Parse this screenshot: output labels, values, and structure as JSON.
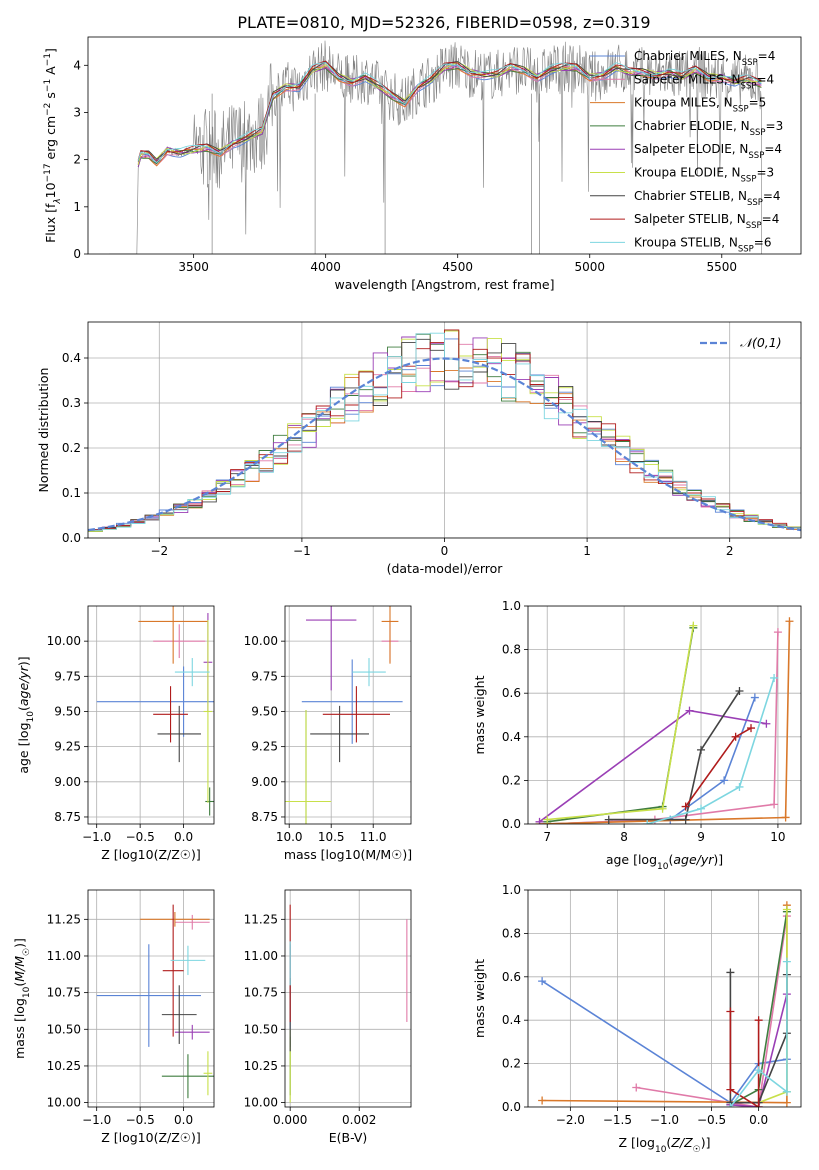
{
  "figure": {
    "title": "PLATE=0810, MJD=52326, FIBERID=0598, z=0.319"
  },
  "models": [
    {
      "name": "Chabrier MILES, N_SSP=4",
      "base": "Chabrier MILES, N",
      "sub": "SSP",
      "suffix": "=4",
      "color": "#5b84d6"
    },
    {
      "name": "Salpeter MILES, N_SSP=4",
      "base": "Salpeter MILES, N",
      "sub": "SSP",
      "suffix": "=4",
      "color": "#e07aa8"
    },
    {
      "name": "Kroupa MILES, N_SSP=5",
      "base": "Kroupa MILES, N",
      "sub": "SSP",
      "suffix": "=5",
      "color": "#d9782a"
    },
    {
      "name": "Chabrier ELODIE, N_SSP=3",
      "base": "Chabrier ELODIE, N",
      "sub": "SSP",
      "suffix": "=3",
      "color": "#3f7d3f"
    },
    {
      "name": "Salpeter ELODIE, N_SSP=4",
      "base": "Salpeter ELODIE, N",
      "sub": "SSP",
      "suffix": "=4",
      "color": "#9a3fb5"
    },
    {
      "name": "Kroupa ELODIE, N_SSP=3",
      "base": "Kroupa ELODIE, N",
      "sub": "SSP",
      "suffix": "=3",
      "color": "#c8e04a"
    },
    {
      "name": "Chabrier STELIB, N_SSP=4",
      "base": "Chabrier STELIB, N",
      "sub": "SSP",
      "suffix": "=4",
      "color": "#444444"
    },
    {
      "name": "Salpeter STELIB, N_SSP=4",
      "base": "Salpeter STELIB, N",
      "sub": "SSP",
      "suffix": "=4",
      "color": "#b01c1c"
    },
    {
      "name": "Kroupa STELIB, N_SSP=6",
      "base": "Kroupa STELIB, N",
      "sub": "SSP",
      "suffix": "=6",
      "color": "#7dd6e0"
    }
  ],
  "chart_data": [
    {
      "id": "spectrum",
      "type": "line",
      "xlabel": "wavelength [Angstrom, rest frame]",
      "ylabel": "Flux [f_λ 10^-17 erg cm^-2 s^-1 A^-1]",
      "ylabel_parts": {
        "a": "Flux [f",
        "b": "λ",
        "c": "10",
        "d": "−17",
        "e": " erg cm",
        "f": "−2",
        "g": " s",
        "h": "−1",
        "i": " A",
        "j": "−1",
        "k": "]"
      },
      "xlim": [
        3100,
        5800
      ],
      "ylim": [
        0,
        4.6
      ],
      "xticks": [
        3500,
        4000,
        4500,
        5000,
        5500
      ],
      "yticks": [
        0,
        1,
        2,
        3,
        4
      ],
      "data_color": "#808080",
      "continuum": {
        "x": [
          3290,
          3300,
          3330,
          3360,
          3400,
          3450,
          3500,
          3550,
          3600,
          3650,
          3700,
          3760,
          3800,
          3850,
          3900,
          3950,
          4000,
          4050,
          4100,
          4150,
          4200,
          4250,
          4300,
          4350,
          4400,
          4450,
          4500,
          4550,
          4600,
          4650,
          4700,
          4750,
          4800,
          4850,
          4900,
          4950,
          5000,
          5050,
          5100,
          5150,
          5200,
          5250,
          5300,
          5350,
          5400,
          5450,
          5500,
          5550,
          5600,
          5650
        ],
        "y": [
          1.9,
          2.1,
          2.1,
          1.95,
          2.2,
          2.15,
          2.2,
          2.25,
          2.15,
          2.35,
          2.45,
          2.6,
          3.35,
          3.55,
          3.55,
          3.9,
          4.0,
          3.75,
          3.65,
          3.75,
          3.55,
          3.35,
          3.2,
          3.55,
          3.7,
          3.95,
          4.0,
          3.85,
          3.8,
          3.8,
          3.95,
          3.9,
          3.75,
          3.9,
          3.95,
          3.95,
          3.75,
          3.8,
          3.95,
          3.85,
          3.85,
          3.8,
          3.85,
          3.75,
          3.9,
          3.75,
          3.75,
          3.65,
          3.7,
          3.6
        ]
      }
    },
    {
      "id": "residuals",
      "type": "bar",
      "xlabel": "(data-model)/error",
      "ylabel": "Normed distribution",
      "xlim": [
        -2.5,
        2.5
      ],
      "ylim": [
        0,
        0.48
      ],
      "xticks": [
        -2,
        -1,
        0,
        1,
        2
      ],
      "yticks": [
        0,
        0.1,
        0.2,
        0.3,
        0.4
      ],
      "legend": "𝒩(0,1)",
      "gauss_color": "#5b84d6"
    },
    {
      "id": "age_vs_Z",
      "type": "scatter",
      "xlabel": "Z [log10(Z/Z☉)]",
      "ylabel": "age [log10(age/yr)]",
      "xlim": [
        -1.1,
        0.35
      ],
      "ylim": [
        8.7,
        10.25
      ],
      "xticks": [
        -1.0,
        -0.5,
        0.0
      ],
      "yticks": [
        8.75,
        9.0,
        9.25,
        9.5,
        9.75,
        10.0
      ],
      "points": [
        {
          "model": 0,
          "x": 0.0,
          "xe": 1.0,
          "y": 9.57,
          "ye": 0.25
        },
        {
          "model": 1,
          "x": -0.05,
          "xe": 0.3,
          "y": 10.0,
          "ye": 0.12
        },
        {
          "model": 2,
          "x": -0.12,
          "xe": 0.4,
          "y": 10.14,
          "ye": 0.3
        },
        {
          "model": 3,
          "x": 0.3,
          "xe": 0.05,
          "y": 8.86,
          "ye": 0.1
        },
        {
          "model": 4,
          "x": 0.28,
          "xe": 0.05,
          "y": 9.85,
          "ye": 0.35
        },
        {
          "model": 5,
          "x": 0.28,
          "xe": 0.05,
          "y": 9.5,
          "ye": 0.65
        },
        {
          "model": 6,
          "x": -0.05,
          "xe": 0.25,
          "y": 9.34,
          "ye": 0.2
        },
        {
          "model": 7,
          "x": -0.15,
          "xe": 0.2,
          "y": 9.48,
          "ye": 0.2
        },
        {
          "model": 8,
          "x": 0.1,
          "xe": 0.2,
          "y": 9.78,
          "ye": 0.1
        }
      ]
    },
    {
      "id": "age_vs_mass",
      "type": "scatter",
      "xlabel": "mass [log10(M/M☉)]",
      "ylabel": "",
      "xlim": [
        9.95,
        11.45
      ],
      "ylim": [
        8.7,
        10.25
      ],
      "xticks": [
        10.0,
        10.5,
        11.0
      ],
      "yticks": [
        8.75,
        9.0,
        9.25,
        9.5,
        9.75,
        10.0
      ],
      "points": [
        {
          "model": 0,
          "x": 10.75,
          "xe": 0.6,
          "y": 9.57,
          "ye": 0.3
        },
        {
          "model": 1,
          "x": 11.2,
          "xe": 0.1,
          "y": 10.0,
          "ye": 0.15
        },
        {
          "model": 2,
          "x": 11.2,
          "xe": 0.1,
          "y": 10.14,
          "ye": 0.3
        },
        {
          "model": 3,
          "x": 10.2,
          "xe": 0.15,
          "y": 8.86,
          "ye": 0.65
        },
        {
          "model": 4,
          "x": 10.5,
          "xe": 0.3,
          "y": 10.15,
          "ye": 0.5
        },
        {
          "model": 5,
          "x": 10.2,
          "xe": 0.3,
          "y": 8.86,
          "ye": 0.65
        },
        {
          "model": 6,
          "x": 10.6,
          "xe": 0.35,
          "y": 9.34,
          "ye": 0.2
        },
        {
          "model": 7,
          "x": 10.8,
          "xe": 0.4,
          "y": 9.48,
          "ye": 0.2
        },
        {
          "model": 8,
          "x": 10.95,
          "xe": 0.2,
          "y": 9.78,
          "ye": 0.1
        }
      ]
    },
    {
      "id": "weight_vs_age",
      "type": "line",
      "xlabel": "age [log10(age/yr)]",
      "ylabel": "mass weight",
      "xlim": [
        6.75,
        10.3
      ],
      "ylim": [
        0,
        1.0
      ],
      "xticks": [
        7,
        8,
        9,
        10
      ],
      "yticks": [
        0.0,
        0.2,
        0.4,
        0.6,
        0.8,
        1.0
      ],
      "series": [
        {
          "model": 0,
          "x": [
            7.0,
            8.6,
            9.3,
            9.7
          ],
          "y": [
            0.0,
            0.02,
            0.2,
            0.58
          ]
        },
        {
          "model": 1,
          "x": [
            7.0,
            8.4,
            9.95,
            10.0
          ],
          "y": [
            0.0,
            0.02,
            0.09,
            0.88
          ]
        },
        {
          "model": 2,
          "x": [
            6.9,
            10.1,
            10.15
          ],
          "y": [
            0.0,
            0.03,
            0.93
          ]
        },
        {
          "model": 3,
          "x": [
            7.0,
            8.5,
            8.9
          ],
          "y": [
            0.01,
            0.08,
            0.9
          ]
        },
        {
          "model": 4,
          "x": [
            6.9,
            8.85,
            9.85
          ],
          "y": [
            0.01,
            0.52,
            0.46
          ]
        },
        {
          "model": 5,
          "x": [
            7.0,
            8.5,
            8.9
          ],
          "y": [
            0.02,
            0.07,
            0.91
          ]
        },
        {
          "model": 6,
          "x": [
            7.8,
            8.8,
            9.0,
            9.5
          ],
          "y": [
            0.02,
            0.02,
            0.34,
            0.61
          ]
        },
        {
          "model": 7,
          "x": [
            8.8,
            9.45,
            9.65
          ],
          "y": [
            0.08,
            0.4,
            0.44
          ]
        },
        {
          "model": 8,
          "x": [
            8.3,
            9.0,
            9.5,
            9.95
          ],
          "y": [
            0.0,
            0.07,
            0.17,
            0.67
          ]
        }
      ]
    },
    {
      "id": "mass_vs_Z",
      "type": "scatter",
      "xlabel": "Z [log10(Z/Z☉)]",
      "ylabel": "mass [log10(M/M☉)]",
      "xlim": [
        -1.1,
        0.35
      ],
      "ylim": [
        9.97,
        11.45
      ],
      "xticks": [
        -1.0,
        -0.5,
        0.0
      ],
      "yticks": [
        10.0,
        10.25,
        10.5,
        10.75,
        11.0,
        11.25
      ],
      "points": [
        {
          "model": 0,
          "x": -0.4,
          "xe": 0.6,
          "y": 10.73,
          "ye": 0.35
        },
        {
          "model": 1,
          "x": 0.1,
          "xe": 0.2,
          "y": 11.23,
          "ye": 0.05
        },
        {
          "model": 2,
          "x": -0.1,
          "xe": 0.4,
          "y": 11.25,
          "ye": 0.05
        },
        {
          "model": 3,
          "x": 0.05,
          "xe": 0.3,
          "y": 10.18,
          "ye": 0.15
        },
        {
          "model": 4,
          "x": 0.1,
          "xe": 0.2,
          "y": 10.48,
          "ye": 0.05
        },
        {
          "model": 5,
          "x": 0.28,
          "xe": 0.05,
          "y": 10.2,
          "ye": 0.15
        },
        {
          "model": 6,
          "x": -0.05,
          "xe": 0.2,
          "y": 10.6,
          "ye": 0.2
        },
        {
          "model": 7,
          "x": -0.12,
          "xe": 0.12,
          "y": 10.9,
          "ye": 0.45
        },
        {
          "model": 8,
          "x": 0.05,
          "xe": 0.2,
          "y": 10.97,
          "ye": 0.1
        }
      ]
    },
    {
      "id": "mass_vs_EBV",
      "type": "scatter",
      "xlabel": "E(B-V)",
      "ylabel": "",
      "xlim": [
        -0.00015,
        0.0035
      ],
      "ylim": [
        9.97,
        11.45
      ],
      "xticks": [
        0.0,
        0.002
      ],
      "yticks": [
        10.0,
        10.25,
        10.5,
        10.75,
        11.0,
        11.25
      ],
      "points": [
        {
          "model": 0,
          "x": 0.0,
          "xe": 0,
          "y": 10.73,
          "ye": 0.35
        },
        {
          "model": 1,
          "x": 0.00338,
          "xe": 0,
          "y": 10.9,
          "ye": 0.35
        },
        {
          "model": 3,
          "x": 0.0,
          "xe": 0,
          "y": 10.25,
          "ye": 0.2
        },
        {
          "model": 5,
          "x": 0.0,
          "xe": 0,
          "y": 10.25,
          "ye": 0.25
        },
        {
          "model": 6,
          "x": 0.0,
          "xe": 0,
          "y": 10.6,
          "ye": 0.25
        },
        {
          "model": 7,
          "x": 0.0,
          "xe": 0,
          "y": 10.95,
          "ye": 0.4
        },
        {
          "model": 8,
          "x": 0.0,
          "xe": 0,
          "y": 10.95,
          "ye": 0.15
        }
      ]
    },
    {
      "id": "weight_vs_Z",
      "type": "line",
      "xlabel": "Z [log10(Z/Z☉)]",
      "ylabel": "mass weight",
      "xlim": [
        -2.45,
        0.45
      ],
      "ylim": [
        0,
        1.0
      ],
      "xticks": [
        -2.0,
        -1.5,
        -1.0,
        -0.5,
        0.0
      ],
      "yticks": [
        0.0,
        0.2,
        0.4,
        0.6,
        0.8,
        1.0
      ],
      "series": [
        {
          "model": 0,
          "x": [
            -2.3,
            -0.3,
            0.0,
            0.3
          ],
          "y": [
            0.58,
            0.02,
            0.2,
            0.22
          ]
        },
        {
          "model": 1,
          "x": [
            -1.3,
            -0.3,
            0.0,
            0.3
          ],
          "y": [
            0.09,
            0.02,
            0.0,
            0.88
          ]
        },
        {
          "model": 2,
          "x": [
            -2.3,
            0.3,
            0.3
          ],
          "y": [
            0.03,
            0.02,
            0.93
          ]
        },
        {
          "model": 3,
          "x": [
            -0.3,
            0.0,
            0.3
          ],
          "y": [
            0.01,
            0.08,
            0.9
          ]
        },
        {
          "model": 4,
          "x": [
            -0.3,
            0.0,
            0.3
          ],
          "y": [
            0.01,
            0.0,
            0.52
          ]
        },
        {
          "model": 5,
          "x": [
            0.0,
            0.3,
            0.3
          ],
          "y": [
            0.02,
            0.07,
            0.91
          ]
        },
        {
          "model": 6,
          "x": [
            -0.3,
            -0.3,
            0.0,
            0.3,
            0.3
          ],
          "y": [
            0.62,
            0.02,
            0.02,
            0.34,
            0.61
          ]
        },
        {
          "model": 7,
          "x": [
            -0.3,
            -0.3,
            0.0,
            0.0
          ],
          "y": [
            0.44,
            0.08,
            0.0,
            0.4
          ]
        },
        {
          "model": 8,
          "x": [
            -0.3,
            0.0,
            0.3,
            0.3
          ],
          "y": [
            0.0,
            0.17,
            0.07,
            0.67
          ]
        }
      ]
    }
  ]
}
